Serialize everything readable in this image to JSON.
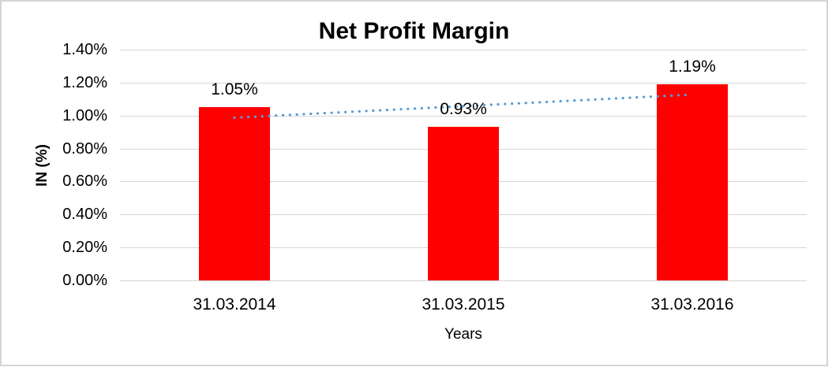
{
  "chart_data": {
    "type": "bar",
    "title": "Net Profit Margin",
    "xlabel": "Years",
    "ylabel": "IN (%)",
    "categories": [
      "31.03.2014",
      "31.03.2015",
      "31.03.2016"
    ],
    "values": [
      1.05,
      0.93,
      1.19
    ],
    "data_labels": [
      "1.05%",
      "0.93%",
      "1.19%"
    ],
    "ylim": [
      0,
      1.4
    ],
    "ytick_step": 0.2,
    "ytick_labels": [
      "0.00%",
      "0.20%",
      "0.40%",
      "0.60%",
      "0.80%",
      "1.00%",
      "1.20%",
      "1.40%"
    ],
    "grid": true,
    "legend": "none",
    "trendline": {
      "type": "linear",
      "style": "dotted",
      "start_value": 0.987,
      "end_value": 1.127
    },
    "colors": {
      "bar": "#FF0000",
      "trendline": "#5B9BD5",
      "gridline": "#D6D6D6",
      "frame_border": "#D4D4D4",
      "text": "#000000",
      "background": "#FFFFFF"
    }
  }
}
